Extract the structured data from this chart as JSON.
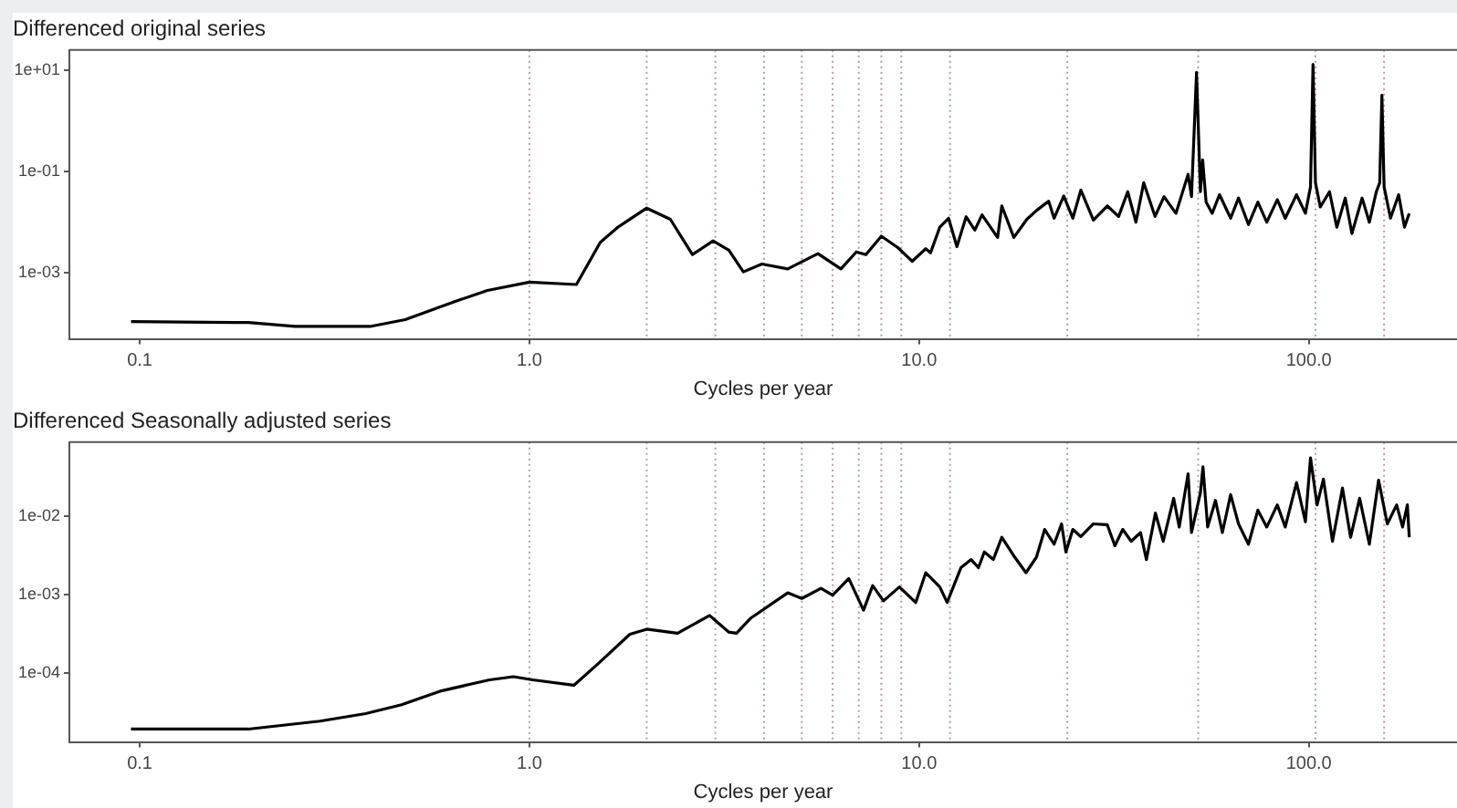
{
  "chart_data": [
    {
      "type": "line",
      "title": "Differenced original series",
      "xlabel": "Cycles per year",
      "log": "xy",
      "xlim": [
        0.066,
        240
      ],
      "xticks": [
        {
          "value": 0.1,
          "label": "0.1"
        },
        {
          "value": 1,
          "label": "1.0"
        },
        {
          "value": 10,
          "label": "10.0"
        },
        {
          "value": 100,
          "label": "100.0"
        }
      ],
      "ylim": [
        5e-05,
        25
      ],
      "yticks": [
        {
          "value": 10,
          "label": "1e+01"
        },
        {
          "value": 0.1,
          "label": "1e-01"
        },
        {
          "value": 0.001,
          "label": "1e-03"
        }
      ],
      "x": [
        0.095,
        0.19,
        0.25,
        0.39,
        0.48,
        0.65,
        0.78,
        1.0,
        1.32,
        1.52,
        1.68,
        2.0,
        2.3,
        2.62,
        2.96,
        3.25,
        3.54,
        3.95,
        4.6,
        5.5,
        6.3,
        6.9,
        7.3,
        8.0,
        8.8,
        9.6,
        10.4,
        10.7,
        11.3,
        11.9,
        12.5,
        13.2,
        13.9,
        14.5,
        15.9,
        16.3,
        17.5,
        18.9,
        20,
        21.5,
        22.2,
        23.5,
        24.8,
        26,
        28,
        30.4,
        32.5,
        34.3,
        36,
        37.7,
        40.3,
        42.5,
        45.6,
        49,
        50,
        51.5,
        52.7,
        53.4,
        54.5,
        56.5,
        59,
        63,
        66,
        70,
        74,
        78,
        83,
        87,
        93,
        98,
        101,
        102.5,
        104,
        107,
        113,
        118,
        124,
        129,
        137,
        143,
        149,
        152,
        154,
        156,
        162,
        170,
        176,
        181
      ],
      "series": [
        {
          "color": "#000000",
          "values": [
            0.00011,
            0.000105,
            8.8e-05,
            8.8e-05,
            0.00012,
            0.00028,
            0.00045,
            0.00066,
            0.00059,
            0.004,
            0.0078,
            0.019,
            0.0114,
            0.0023,
            0.0043,
            0.0028,
            0.00105,
            0.0015,
            0.0012,
            0.0024,
            0.0012,
            0.0026,
            0.0023,
            0.0053,
            0.0032,
            0.0017,
            0.003,
            0.0025,
            0.008,
            0.012,
            0.0033,
            0.0128,
            0.007,
            0.014,
            0.005,
            0.021,
            0.005,
            0.0114,
            0.017,
            0.026,
            0.012,
            0.033,
            0.012,
            0.043,
            0.011,
            0.021,
            0.013,
            0.04,
            0.01,
            0.06,
            0.013,
            0.032,
            0.015,
            0.088,
            0.032,
            9,
            0.04,
            0.17,
            0.025,
            0.015,
            0.035,
            0.012,
            0.03,
            0.009,
            0.025,
            0.01,
            0.028,
            0.012,
            0.035,
            0.015,
            0.05,
            13,
            0.06,
            0.02,
            0.04,
            0.008,
            0.03,
            0.006,
            0.03,
            0.01,
            0.04,
            0.06,
            3.2,
            0.05,
            0.012,
            0.035,
            0.008,
            0.015
          ]
        }
      ],
      "ref_lines": [
        {
          "axis": "x",
          "value": 1,
          "color": "#b49c9c",
          "line_style": "dotted"
        },
        {
          "axis": "x",
          "value": 2,
          "color": "#b49c9c",
          "line_style": "dotted"
        },
        {
          "axis": "x",
          "value": 3,
          "color": "#b49c9c",
          "line_style": "dotted"
        },
        {
          "axis": "x",
          "value": 4,
          "color": "#b49c9c",
          "line_style": "dotted"
        },
        {
          "axis": "x",
          "value": 5,
          "color": "#b49c9c",
          "line_style": "dotted"
        },
        {
          "axis": "x",
          "value": 6,
          "color": "#b49c9c",
          "line_style": "dotted"
        },
        {
          "axis": "x",
          "value": 7,
          "color": "#b49c9c",
          "line_style": "dotted"
        },
        {
          "axis": "x",
          "value": 8,
          "color": "#b49c9c",
          "line_style": "dotted"
        },
        {
          "axis": "x",
          "value": 9,
          "color": "#b49c9c",
          "line_style": "dotted"
        },
        {
          "axis": "x",
          "value": 12,
          "color": "#b49c9c",
          "line_style": "dotted"
        },
        {
          "axis": "x",
          "value": 24,
          "color": "#b49c9c",
          "line_style": "dotted"
        },
        {
          "axis": "x",
          "value": 52,
          "color": "#b49c9c",
          "line_style": "dotted"
        },
        {
          "axis": "x",
          "value": 104,
          "color": "#b49c9c",
          "line_style": "dotted"
        },
        {
          "axis": "x",
          "value": 156,
          "color": "#b49c9c",
          "line_style": "dotted"
        }
      ]
    },
    {
      "type": "line",
      "title": "Differenced Seasonally adjusted series",
      "xlabel": "Cycles per year",
      "log": "xy",
      "xlim": [
        0.066,
        240
      ],
      "xticks": [
        {
          "value": 0.1,
          "label": "0.1"
        },
        {
          "value": 1,
          "label": "1.0"
        },
        {
          "value": 10,
          "label": "10.0"
        },
        {
          "value": 100,
          "label": "100.0"
        }
      ],
      "ylim": [
        1.3e-05,
        0.089
      ],
      "yticks": [
        {
          "value": 0.01,
          "label": "1e-02"
        },
        {
          "value": 0.001,
          "label": "1e-03"
        },
        {
          "value": 0.0001,
          "label": "1e-04"
        }
      ],
      "x": [
        0.095,
        0.19,
        0.29,
        0.38,
        0.47,
        0.59,
        0.79,
        0.91,
        1.02,
        1.3,
        1.5,
        1.81,
        2.0,
        2.4,
        2.9,
        3.25,
        3.4,
        3.7,
        4.6,
        5,
        5.6,
        6.0,
        6.6,
        7.2,
        7.6,
        8.1,
        8.9,
        9.8,
        10.4,
        11.3,
        11.8,
        12.8,
        13.6,
        14.2,
        14.7,
        15.5,
        16.3,
        17.6,
        18.8,
        20,
        21,
        22.2,
        23.2,
        23.8,
        24.8,
        26,
        28,
        30.4,
        31.8,
        33.3,
        35,
        37,
        38.3,
        40.4,
        42.3,
        45,
        46.5,
        49,
        50,
        52.7,
        53.5,
        55,
        57.6,
        60,
        63,
        66,
        70,
        74,
        78,
        83,
        87,
        93,
        98,
        101,
        105,
        109,
        115,
        122,
        128,
        135,
        143,
        151,
        159,
        168,
        174,
        179,
        181
      ],
      "series": [
        {
          "color": "#000000",
          "values": [
            1.9e-05,
            1.9e-05,
            2.4e-05,
            3e-05,
            3.9e-05,
            5.8e-05,
            8.1e-05,
            8.9e-05,
            8.1e-05,
            6.9e-05,
            0.00013,
            0.00031,
            0.00036,
            0.00032,
            0.00054,
            0.00033,
            0.00032,
            0.0005,
            0.00105,
            0.00089,
            0.0012,
            0.00098,
            0.0016,
            0.00063,
            0.0013,
            0.00083,
            0.00125,
            0.00079,
            0.0019,
            0.00125,
            0.00079,
            0.0022,
            0.0028,
            0.0022,
            0.0035,
            0.0028,
            0.0054,
            0.003,
            0.0019,
            0.003,
            0.0068,
            0.0044,
            0.008,
            0.0035,
            0.0068,
            0.0055,
            0.008,
            0.0078,
            0.0042,
            0.0068,
            0.0048,
            0.0062,
            0.0028,
            0.011,
            0.0048,
            0.017,
            0.0073,
            0.035,
            0.0062,
            0.02,
            0.043,
            0.0073,
            0.016,
            0.0062,
            0.019,
            0.008,
            0.0044,
            0.012,
            0.0073,
            0.014,
            0.0073,
            0.027,
            0.0085,
            0.056,
            0.014,
            0.03,
            0.0048,
            0.023,
            0.0054,
            0.017,
            0.0044,
            0.029,
            0.008,
            0.014,
            0.0073,
            0.014,
            0.0054
          ]
        }
      ],
      "ref_lines": [
        {
          "axis": "x",
          "value": 1,
          "color": "#a8a8a8",
          "line_style": "dotted"
        },
        {
          "axis": "x",
          "value": 2,
          "color": "#a8a8a8",
          "line_style": "dotted"
        },
        {
          "axis": "x",
          "value": 3,
          "color": "#a8a8a8",
          "line_style": "dotted"
        },
        {
          "axis": "x",
          "value": 4,
          "color": "#b49c9c",
          "line_style": "dotted"
        },
        {
          "axis": "x",
          "value": 5,
          "color": "#b49c9c",
          "line_style": "dotted"
        },
        {
          "axis": "x",
          "value": 6,
          "color": "#b49c9c",
          "line_style": "dotted"
        },
        {
          "axis": "x",
          "value": 7,
          "color": "#b49c9c",
          "line_style": "dotted"
        },
        {
          "axis": "x",
          "value": 8,
          "color": "#b49c9c",
          "line_style": "dotted"
        },
        {
          "axis": "x",
          "value": 9,
          "color": "#b49c9c",
          "line_style": "dotted"
        },
        {
          "axis": "x",
          "value": 12,
          "color": "#b49c9c",
          "line_style": "dotted"
        },
        {
          "axis": "x",
          "value": 24,
          "color": "#b49c9c",
          "line_style": "dotted"
        },
        {
          "axis": "x",
          "value": 52,
          "color": "#b49c9c",
          "line_style": "dotted"
        },
        {
          "axis": "x",
          "value": 104,
          "color": "#b49c9c",
          "line_style": "dotted"
        },
        {
          "axis": "x",
          "value": 156,
          "color": "#b49c9c",
          "line_style": "dotted"
        }
      ]
    }
  ]
}
